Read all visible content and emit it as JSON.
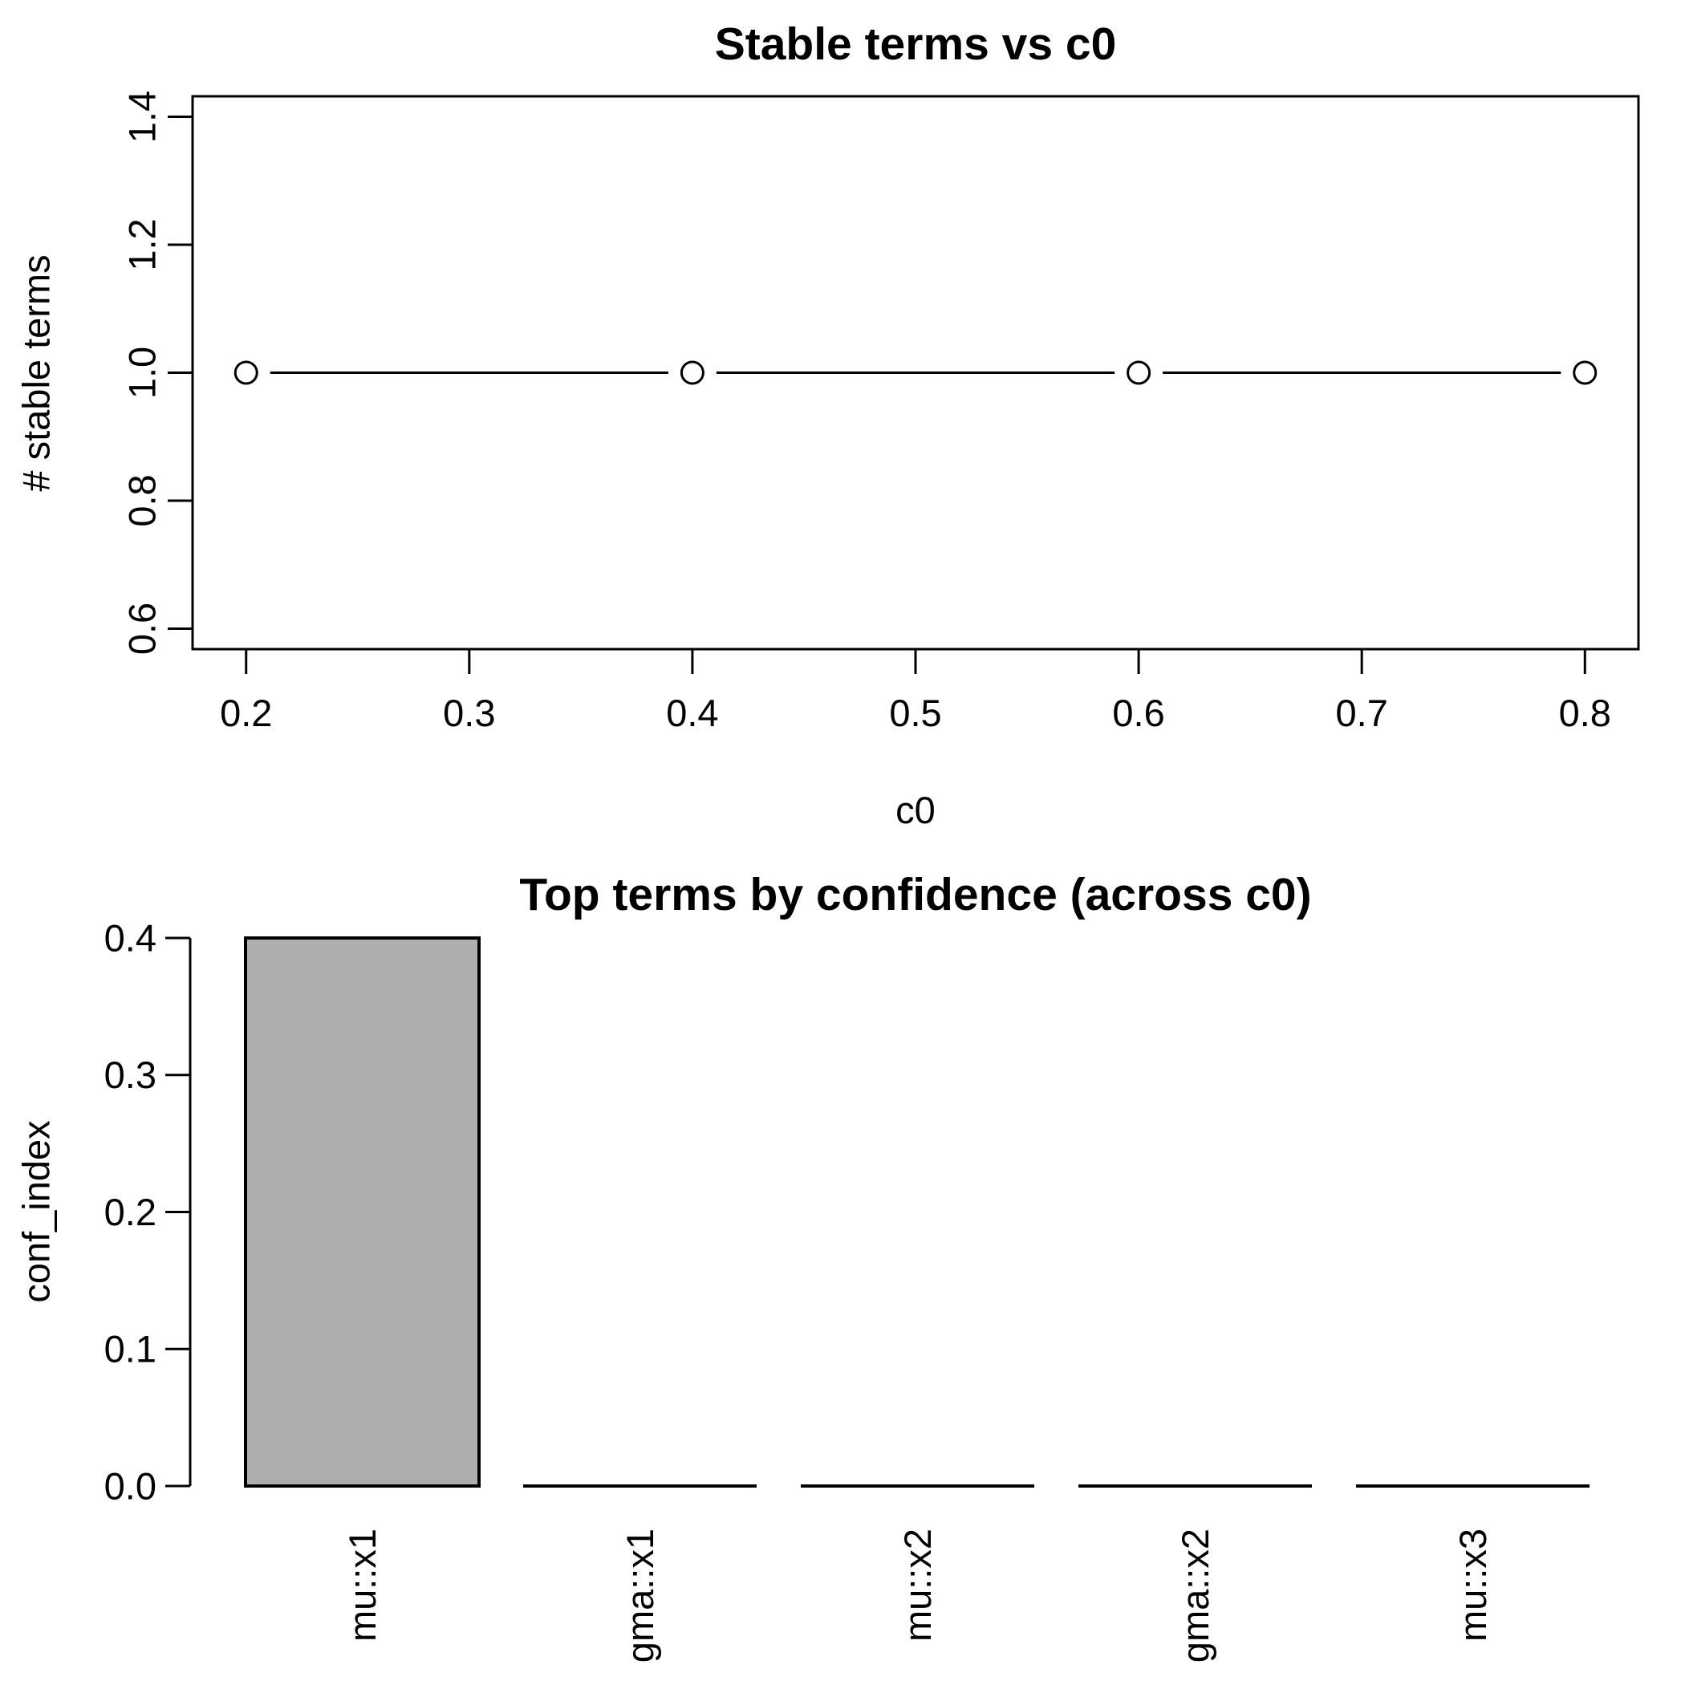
{
  "chart_data": [
    {
      "type": "line",
      "title": "Stable terms vs c0",
      "xlabel": "c0",
      "ylabel": "# stable terms",
      "x": [
        0.2,
        0.4,
        0.6,
        0.8
      ],
      "y": [
        1.0,
        1.0,
        1.0,
        1.0
      ],
      "xticks": [
        0.2,
        0.3,
        0.4,
        0.5,
        0.6,
        0.7,
        0.8
      ],
      "xtick_labels": [
        "0.2",
        "0.3",
        "0.4",
        "0.5",
        "0.6",
        "0.7",
        "0.8"
      ],
      "yticks": [
        0.6,
        0.8,
        1.0,
        1.2,
        1.4
      ],
      "ytick_labels": [
        "0.6",
        "0.8",
        "1.0",
        "1.2",
        "1.4"
      ],
      "xlim": [
        0.176,
        0.824
      ],
      "ylim": [
        0.568,
        1.432
      ],
      "marker": "open-circle",
      "line_color": "#000000",
      "grid": false,
      "legend": null
    },
    {
      "type": "bar",
      "title": "Top terms by confidence (across c0)",
      "xlabel": "",
      "ylabel": "conf_index",
      "categories": [
        "mu::x1",
        "gma::x1",
        "mu::x2",
        "gma::x2",
        "mu::x3"
      ],
      "values": [
        0.4,
        0,
        0,
        0,
        0
      ],
      "yticks": [
        0.0,
        0.1,
        0.2,
        0.3,
        0.4
      ],
      "ytick_labels": [
        "0.0",
        "0.1",
        "0.2",
        "0.3",
        "0.4"
      ],
      "ylim": [
        0,
        0.4
      ],
      "bar_color": "#aeaeae",
      "bar_border_color": "#000000",
      "grid": false,
      "legend": null
    }
  ]
}
